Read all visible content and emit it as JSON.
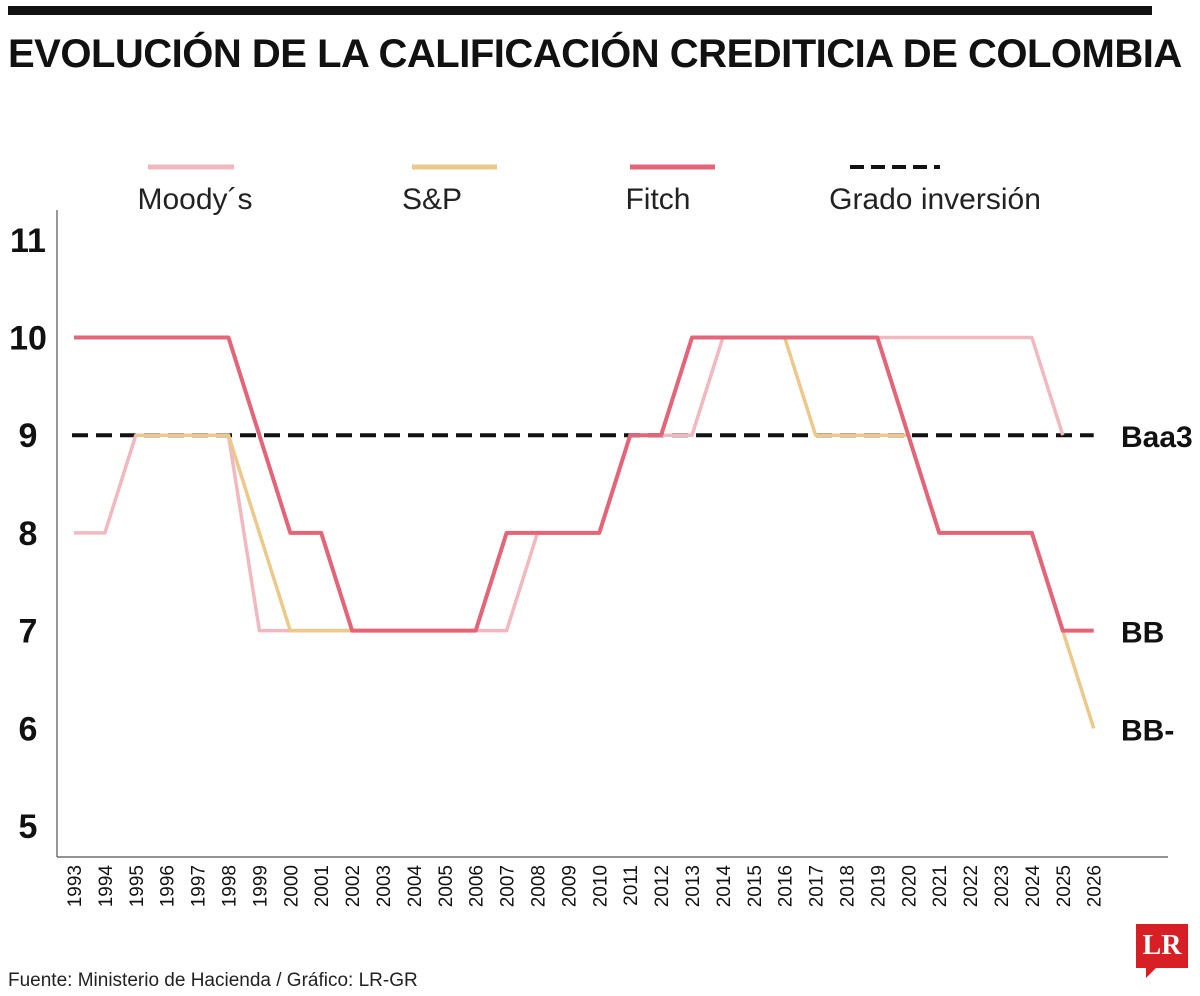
{
  "title": "EVOLUCIÓN DE LA CALIFICACIÓN CREDITICIA DE COLOMBIA",
  "source": "Fuente: Ministerio de Hacienda / Gráfico: LR-GR",
  "logo": "LR",
  "colors": {
    "moodys": "#f2b8c0",
    "sp": "#ecc98a",
    "fitch": "#e46478",
    "grado": "#111111",
    "axis": "#555555",
    "logo": "#d91f26"
  },
  "chart_data": {
    "type": "line",
    "x": [
      1993,
      1994,
      1995,
      1996,
      1997,
      1998,
      1999,
      2000,
      2001,
      2002,
      2003,
      2004,
      2005,
      2006,
      2007,
      2008,
      2009,
      2010,
      2011,
      2012,
      2013,
      2014,
      2015,
      2016,
      2017,
      2018,
      2019,
      2020,
      2021,
      2022,
      2023,
      2024,
      2025,
      2026
    ],
    "ylim": [
      5,
      11
    ],
    "yticks": [
      5,
      6,
      7,
      8,
      9,
      10,
      11
    ],
    "legend": [
      {
        "key": "moodys",
        "label": "Moody´s"
      },
      {
        "key": "sp",
        "label": "S&P"
      },
      {
        "key": "fitch",
        "label": "Fitch"
      },
      {
        "key": "grado",
        "label": "Grado inversión"
      }
    ],
    "series": [
      {
        "key": "moodys",
        "name": "Moody´s",
        "values": [
          8,
          8,
          9,
          9,
          9,
          9,
          7,
          7,
          7,
          7,
          7,
          7,
          7,
          7,
          7,
          8,
          8,
          8,
          9,
          9,
          9,
          10,
          10,
          10,
          10,
          10,
          10,
          10,
          10,
          10,
          10,
          10,
          9,
          null
        ]
      },
      {
        "key": "sp",
        "name": "S&P",
        "values": [
          null,
          null,
          9,
          9,
          9,
          9,
          8,
          7,
          7,
          7,
          7,
          7,
          7,
          7,
          8,
          8,
          8,
          8,
          9,
          9,
          10,
          10,
          10,
          10,
          9,
          9,
          9,
          9,
          8,
          8,
          8,
          8,
          7,
          6
        ]
      },
      {
        "key": "fitch",
        "name": "Fitch",
        "values": [
          10,
          10,
          10,
          10,
          10,
          10,
          9,
          8,
          8,
          7,
          7,
          7,
          7,
          7,
          8,
          8,
          8,
          8,
          9,
          9,
          10,
          10,
          10,
          10,
          10,
          10,
          10,
          9,
          8,
          8,
          8,
          8,
          7,
          7
        ]
      }
    ],
    "reference_line": {
      "key": "grado",
      "name": "Grado inversión",
      "y": 9
    },
    "end_labels": [
      {
        "text": "Baa3",
        "y": 9
      },
      {
        "text": "BB",
        "y": 7
      },
      {
        "text": "BB-",
        "y": 6
      }
    ]
  }
}
